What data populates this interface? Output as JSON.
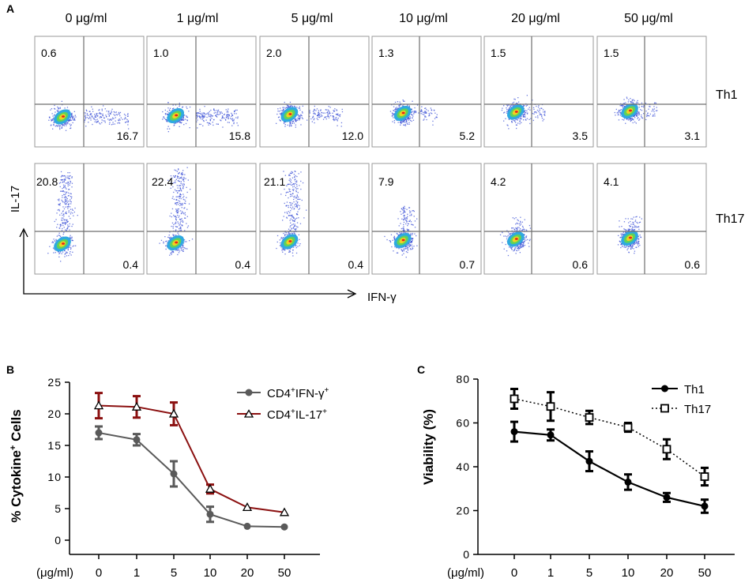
{
  "panel_letters": {
    "a": "A",
    "b": "B",
    "c": "C"
  },
  "panel_a": {
    "concentrations": [
      "0 μg/ml",
      "1 μg/ml",
      "5 μg/ml",
      "10 μg/ml",
      "20 μg/ml",
      "50 μg/ml"
    ],
    "rows": [
      {
        "label": "Th1",
        "upper_left": [
          "0.6",
          "1.0",
          "2.0",
          "1.3",
          "1.5",
          "1.5"
        ],
        "lower_right": [
          "16.7",
          "15.8",
          "12.0",
          "5.2",
          "3.5",
          "3.1"
        ]
      },
      {
        "label": "Th17",
        "upper_left": [
          "20.8",
          "22.4",
          "21.1",
          "7.9",
          "4.2",
          "4.1"
        ],
        "lower_right": [
          "0.4",
          "0.4",
          "0.4",
          "0.7",
          "0.6",
          "0.6"
        ]
      }
    ],
    "y_axis_label": "IL-17",
    "x_axis_label": "IFN-γ"
  },
  "colors": {
    "ifn_series": "#5a5a5a",
    "il17_series": "#8b1010",
    "axis": "#000000",
    "box": "#9a9a9a",
    "gate": "#6e6e6e",
    "dot": "#3a4fd6"
  },
  "chart_data": [
    {
      "type": "line",
      "panel": "B",
      "categories": [
        "0",
        "1",
        "5",
        "10",
        "20",
        "50"
      ],
      "xunit_label": "(μg/ml)",
      "ylabel_main": "% Cytokine",
      "ylabel_sup": "+",
      "ylabel_tail": " Cells",
      "ylim": [
        0,
        25
      ],
      "yticks": [
        0,
        5,
        10,
        15,
        20,
        25
      ],
      "series": [
        {
          "name": "CD4+IFN-γ+",
          "legend_main": "CD4",
          "legend_sup1": "+",
          "legend_mid": "IFN-γ",
          "legend_sup2": "+",
          "marker": "circle",
          "values": [
            17.0,
            15.9,
            10.5,
            4.1,
            2.2,
            2.1
          ],
          "errors": [
            1.0,
            0.9,
            2.0,
            1.2,
            0,
            0
          ]
        },
        {
          "name": "CD4+IL-17+",
          "legend_main": "CD4",
          "legend_sup1": "+",
          "legend_mid": "IL-17",
          "legend_sup2": "+",
          "marker": "triangle",
          "values": [
            21.3,
            21.1,
            20.0,
            8.1,
            5.2,
            4.4
          ],
          "errors": [
            2.0,
            1.7,
            1.8,
            0.7,
            0,
            0
          ]
        }
      ]
    },
    {
      "type": "line",
      "panel": "C",
      "categories": [
        "0",
        "1",
        "5",
        "10",
        "20",
        "50"
      ],
      "xunit_label": "(μg/ml)",
      "ylabel": "Viability (%)",
      "ylim": [
        0,
        80
      ],
      "yticks": [
        0,
        20,
        40,
        60,
        80
      ],
      "series": [
        {
          "name": "Th1",
          "marker": "filled-circle",
          "line": "solid",
          "values": [
            56,
            54.5,
            42.5,
            33,
            26,
            22
          ],
          "errors": [
            4.5,
            2.5,
            4.5,
            3.5,
            2,
            3
          ]
        },
        {
          "name": "Th17",
          "marker": "open-square",
          "line": "dotted",
          "values": [
            71,
            67.5,
            62.5,
            58,
            48,
            35.5
          ],
          "errors": [
            4.5,
            6.5,
            3,
            2,
            4.5,
            4
          ]
        }
      ]
    }
  ]
}
